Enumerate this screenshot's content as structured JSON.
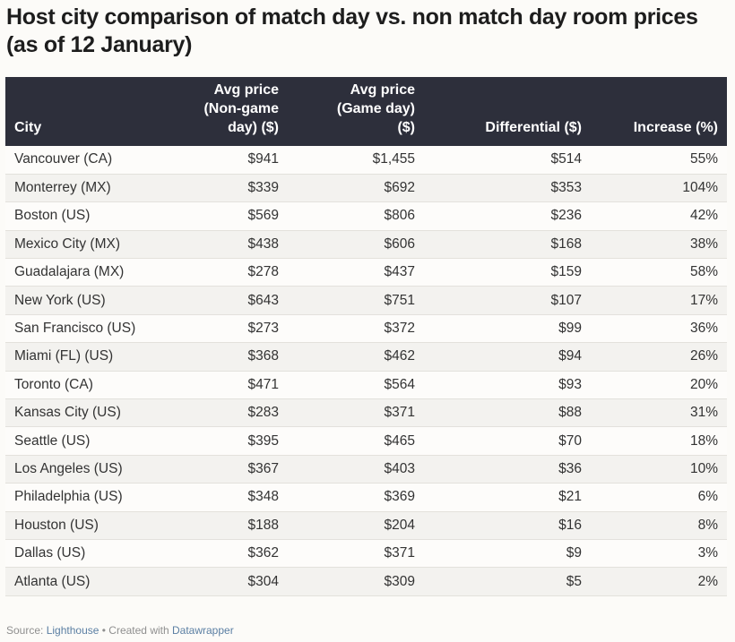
{
  "chart_data": {
    "type": "table",
    "title": "Host city comparison of match day vs. non match day room prices (as of 12 January)",
    "columns": [
      "City",
      "Avg price (Non-game day) ($)",
      "Avg price (Game day) ($)",
      "Differential ($)",
      "Increase (%)"
    ],
    "rows": [
      {
        "city": "Vancouver (CA)",
        "non_game": "$941",
        "game": "$1,455",
        "diff": "$514",
        "increase": "55%"
      },
      {
        "city": "Monterrey (MX)",
        "non_game": "$339",
        "game": "$692",
        "diff": "$353",
        "increase": "104%"
      },
      {
        "city": "Boston (US)",
        "non_game": "$569",
        "game": "$806",
        "diff": "$236",
        "increase": "42%"
      },
      {
        "city": "Mexico City (MX)",
        "non_game": "$438",
        "game": "$606",
        "diff": "$168",
        "increase": "38%"
      },
      {
        "city": "Guadalajara (MX)",
        "non_game": "$278",
        "game": "$437",
        "diff": "$159",
        "increase": "58%"
      },
      {
        "city": "New York (US)",
        "non_game": "$643",
        "game": "$751",
        "diff": "$107",
        "increase": "17%"
      },
      {
        "city": "San Francisco (US)",
        "non_game": "$273",
        "game": "$372",
        "diff": "$99",
        "increase": "36%"
      },
      {
        "city": "Miami (FL) (US)",
        "non_game": "$368",
        "game": "$462",
        "diff": "$94",
        "increase": "26%"
      },
      {
        "city": "Toronto (CA)",
        "non_game": "$471",
        "game": "$564",
        "diff": "$93",
        "increase": "20%"
      },
      {
        "city": "Kansas City (US)",
        "non_game": "$283",
        "game": "$371",
        "diff": "$88",
        "increase": "31%"
      },
      {
        "city": "Seattle (US)",
        "non_game": "$395",
        "game": "$465",
        "diff": "$70",
        "increase": "18%"
      },
      {
        "city": "Los Angeles (US)",
        "non_game": "$367",
        "game": "$403",
        "diff": "$36",
        "increase": "10%"
      },
      {
        "city": "Philadelphia (US)",
        "non_game": "$348",
        "game": "$369",
        "diff": "$21",
        "increase": "6%"
      },
      {
        "city": "Houston (US)",
        "non_game": "$188",
        "game": "$204",
        "diff": "$16",
        "increase": "8%"
      },
      {
        "city": "Dallas (US)",
        "non_game": "$362",
        "game": "$371",
        "diff": "$9",
        "increase": "3%"
      },
      {
        "city": "Atlanta (US)",
        "non_game": "$304",
        "game": "$309",
        "diff": "$5",
        "increase": "2%"
      }
    ]
  },
  "header": {
    "title": "Host city comparison of match day vs. non match day room prices (as of 12 January)"
  },
  "table": {
    "headers": {
      "city": "City",
      "non_game_line1": "Avg price",
      "non_game_line2": "(Non-game",
      "non_game_line3": "day) ($)",
      "game_line1": "Avg price",
      "game_line2": "(Game day)",
      "game_line3": "($)",
      "diff": "Differential ($)",
      "increase": "Increase (%)"
    }
  },
  "footer": {
    "source_prefix": "Source: ",
    "source_link": "Lighthouse",
    "separator": " • Created with ",
    "tool_link": "Datawrapper"
  },
  "colors": {
    "header_bg": "#2d2f3b",
    "page_bg": "#fcfbf8",
    "link": "#5b7fa3"
  }
}
